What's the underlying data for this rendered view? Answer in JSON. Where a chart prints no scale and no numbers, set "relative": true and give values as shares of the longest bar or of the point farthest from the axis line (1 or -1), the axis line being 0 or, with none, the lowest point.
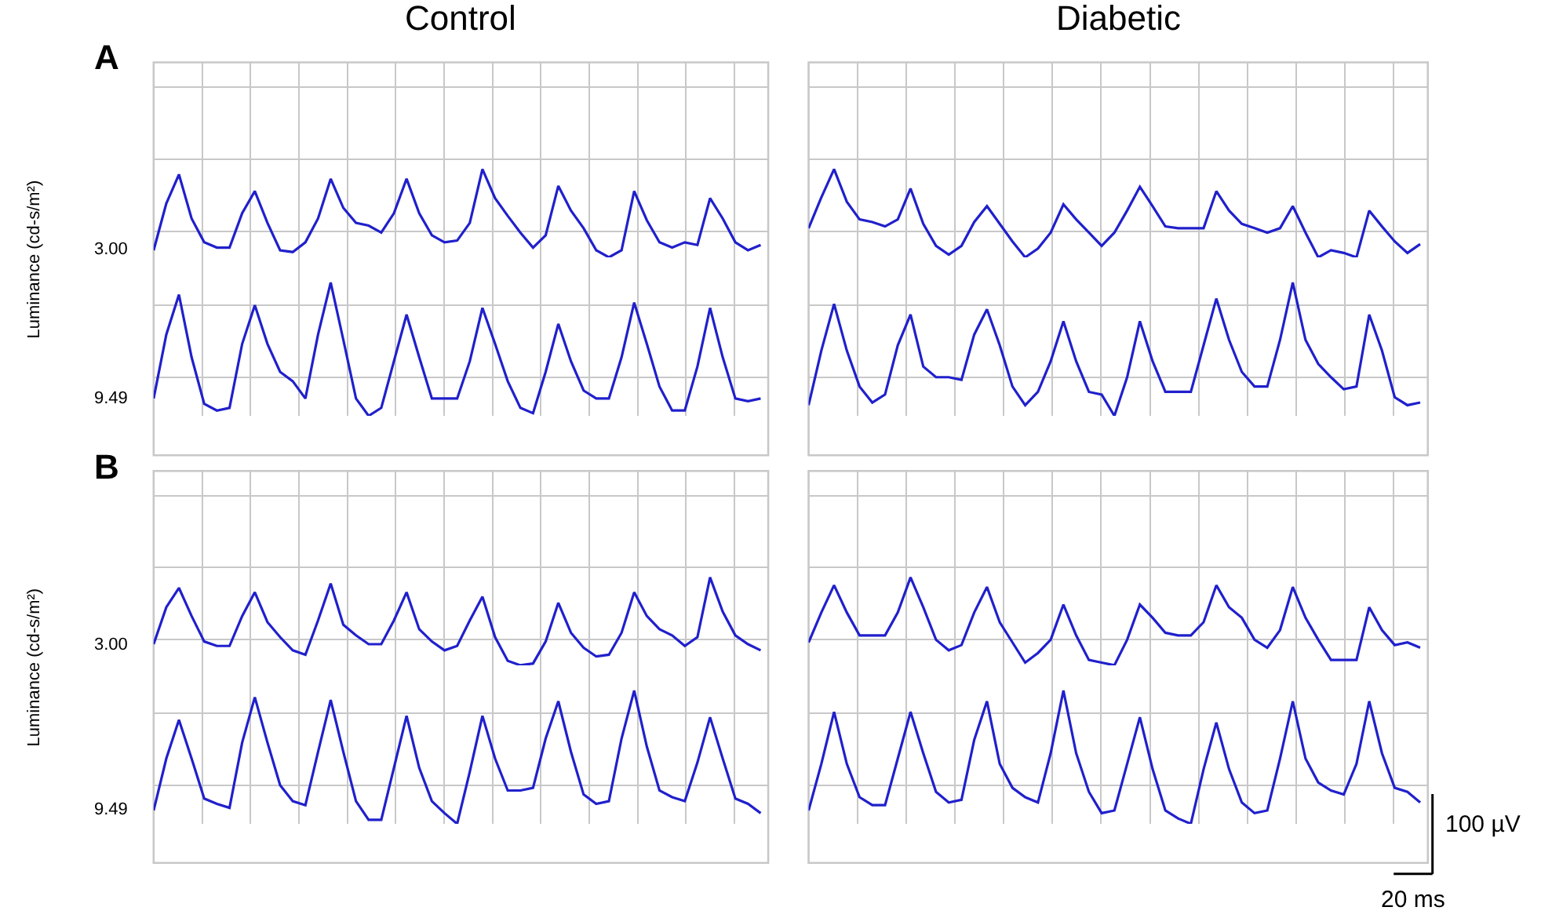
{
  "chart_data": [
    {
      "type": "line",
      "relative": true,
      "title": "Control",
      "ylabel": "Luminance (cd-s/m²)",
      "annotations": [
        "A"
      ],
      "grid": true,
      "categories": [
        null,
        null,
        null,
        null,
        null,
        null,
        null,
        null,
        null,
        null,
        null,
        null,
        null,
        null,
        null,
        null,
        null,
        null,
        null,
        null,
        null,
        null,
        null,
        null,
        null,
        null,
        null,
        null,
        null,
        null,
        null,
        null,
        null,
        null,
        null,
        null,
        null,
        null,
        null,
        null,
        null,
        null,
        null,
        null,
        null,
        null,
        null,
        null,
        null
      ],
      "series": [
        {
          "name": "3.00",
          "color": "#2020cc",
          "values": [
            0.08,
            0.61,
            0.94,
            0.44,
            0.17,
            0.11,
            0.11,
            0.5,
            0.75,
            0.39,
            0.08,
            0.06,
            0.17,
            0.44,
            0.89,
            0.56,
            0.39,
            0.36,
            0.28,
            0.5,
            0.89,
            0.5,
            0.25,
            0.17,
            0.19,
            0.39,
            1.0,
            0.67,
            0.47,
            0.28,
            0.11,
            0.25,
            0.81,
            0.53,
            0.33,
            0.08,
            0.0,
            0.08,
            0.75,
            0.42,
            0.17,
            0.11,
            0.17,
            0.14,
            0.67,
            0.44,
            0.17,
            0.08,
            0.14
          ]
        }
      ]
    },
    {
      "type": "line",
      "relative": true,
      "title": "Diabetic",
      "grid": true,
      "categories": [
        null,
        null,
        null,
        null,
        null,
        null,
        null,
        null,
        null,
        null,
        null,
        null,
        null,
        null,
        null,
        null,
        null,
        null,
        null,
        null,
        null,
        null,
        null,
        null,
        null,
        null,
        null,
        null,
        null,
        null,
        null,
        null,
        null,
        null,
        null,
        null,
        null,
        null,
        null,
        null,
        null,
        null,
        null,
        null,
        null,
        null,
        null,
        null,
        null
      ],
      "series": [
        {
          "color": "#2020cc",
          "values": [
            0.33,
            0.68,
            1.0,
            0.63,
            0.43,
            0.4,
            0.35,
            0.43,
            0.78,
            0.38,
            0.13,
            0.03,
            0.13,
            0.4,
            0.58,
            0.38,
            0.18,
            0.0,
            0.1,
            0.28,
            0.6,
            0.43,
            0.28,
            0.13,
            0.28,
            0.53,
            0.8,
            0.58,
            0.35,
            0.33,
            0.33,
            0.33,
            0.75,
            0.53,
            0.38,
            0.33,
            0.28,
            0.33,
            0.58,
            0.28,
            0.0,
            0.08,
            0.05,
            0.0,
            0.53,
            0.35,
            0.18,
            0.05,
            0.15
          ]
        }
      ]
    },
    {
      "type": "line",
      "relative": true,
      "grid": true,
      "categories": [
        null,
        null,
        null,
        null,
        null,
        null,
        null,
        null,
        null,
        null,
        null,
        null,
        null,
        null,
        null,
        null,
        null,
        null,
        null,
        null,
        null,
        null,
        null,
        null,
        null,
        null,
        null,
        null,
        null,
        null,
        null,
        null,
        null,
        null,
        null,
        null,
        null,
        null,
        null,
        null,
        null,
        null,
        null,
        null,
        null,
        null,
        null,
        null,
        null
      ],
      "series": [
        {
          "name": "9.49",
          "color": "#2020cc",
          "values": [
            0.13,
            0.61,
            0.91,
            0.44,
            0.09,
            0.04,
            0.06,
            0.54,
            0.83,
            0.54,
            0.33,
            0.26,
            0.13,
            0.61,
            1.0,
            0.57,
            0.13,
            0.0,
            0.06,
            0.41,
            0.76,
            0.44,
            0.13,
            0.13,
            0.13,
            0.41,
            0.81,
            0.54,
            0.26,
            0.06,
            0.02,
            0.33,
            0.69,
            0.41,
            0.19,
            0.13,
            0.13,
            0.44,
            0.85,
            0.54,
            0.22,
            0.04,
            0.04,
            0.37,
            0.81,
            0.44,
            0.13,
            0.11,
            0.13
          ]
        }
      ]
    },
    {
      "type": "line",
      "relative": true,
      "grid": true,
      "categories": [
        null,
        null,
        null,
        null,
        null,
        null,
        null,
        null,
        null,
        null,
        null,
        null,
        null,
        null,
        null,
        null,
        null,
        null,
        null,
        null,
        null,
        null,
        null,
        null,
        null,
        null,
        null,
        null,
        null,
        null,
        null,
        null,
        null,
        null,
        null,
        null,
        null,
        null,
        null,
        null,
        null,
        null,
        null,
        null,
        null,
        null,
        null,
        null,
        null
      ],
      "series": [
        {
          "color": "#2020cc",
          "values": [
            0.08,
            0.49,
            0.84,
            0.49,
            0.22,
            0.1,
            0.16,
            0.53,
            0.76,
            0.37,
            0.29,
            0.29,
            0.27,
            0.61,
            0.8,
            0.53,
            0.22,
            0.08,
            0.18,
            0.41,
            0.71,
            0.41,
            0.18,
            0.16,
            0.0,
            0.29,
            0.71,
            0.41,
            0.18,
            0.18,
            0.18,
            0.53,
            0.88,
            0.57,
            0.33,
            0.22,
            0.22,
            0.57,
            1.0,
            0.57,
            0.39,
            0.29,
            0.2,
            0.22,
            0.76,
            0.49,
            0.14,
            0.08,
            0.1
          ]
        }
      ]
    },
    {
      "type": "line",
      "relative": true,
      "ylabel": "Luminance (cd-s/m²)",
      "annotations": [
        "B"
      ],
      "grid": true,
      "categories": [
        null,
        null,
        null,
        null,
        null,
        null,
        null,
        null,
        null,
        null,
        null,
        null,
        null,
        null,
        null,
        null,
        null,
        null,
        null,
        null,
        null,
        null,
        null,
        null,
        null,
        null,
        null,
        null,
        null,
        null,
        null,
        null,
        null,
        null,
        null,
        null,
        null,
        null,
        null,
        null,
        null,
        null,
        null,
        null,
        null,
        null,
        null,
        null,
        null
      ],
      "series": [
        {
          "name": "3.00",
          "color": "#2020cc",
          "values": [
            0.24,
            0.66,
            0.88,
            0.56,
            0.27,
            0.22,
            0.22,
            0.56,
            0.83,
            0.49,
            0.32,
            0.17,
            0.12,
            0.51,
            0.93,
            0.46,
            0.34,
            0.24,
            0.24,
            0.51,
            0.83,
            0.41,
            0.27,
            0.17,
            0.22,
            0.51,
            0.78,
            0.32,
            0.05,
            0.0,
            0.02,
            0.27,
            0.71,
            0.37,
            0.2,
            0.1,
            0.12,
            0.37,
            0.83,
            0.56,
            0.41,
            0.34,
            0.22,
            0.32,
            1.0,
            0.61,
            0.34,
            0.24,
            0.17
          ]
        }
      ]
    },
    {
      "type": "line",
      "relative": true,
      "grid": true,
      "categories": [
        null,
        null,
        null,
        null,
        null,
        null,
        null,
        null,
        null,
        null,
        null,
        null,
        null,
        null,
        null,
        null,
        null,
        null,
        null,
        null,
        null,
        null,
        null,
        null,
        null,
        null,
        null,
        null,
        null,
        null,
        null,
        null,
        null,
        null,
        null,
        null,
        null,
        null,
        null,
        null,
        null,
        null,
        null,
        null,
        null,
        null,
        null,
        null,
        null
      ],
      "series": [
        {
          "color": "#2020cc",
          "values": [
            0.26,
            0.6,
            0.91,
            0.6,
            0.34,
            0.34,
            0.34,
            0.6,
            1.0,
            0.66,
            0.29,
            0.17,
            0.23,
            0.6,
            0.89,
            0.49,
            0.26,
            0.03,
            0.14,
            0.29,
            0.69,
            0.34,
            0.06,
            0.03,
            0.0,
            0.29,
            0.69,
            0.54,
            0.37,
            0.34,
            0.34,
            0.49,
            0.91,
            0.66,
            0.54,
            0.29,
            0.2,
            0.4,
            0.89,
            0.54,
            0.29,
            0.06,
            0.06,
            0.06,
            0.66,
            0.4,
            0.23,
            0.26,
            0.2
          ]
        }
      ]
    },
    {
      "type": "line",
      "relative": true,
      "grid": true,
      "categories": [
        null,
        null,
        null,
        null,
        null,
        null,
        null,
        null,
        null,
        null,
        null,
        null,
        null,
        null,
        null,
        null,
        null,
        null,
        null,
        null,
        null,
        null,
        null,
        null,
        null,
        null,
        null,
        null,
        null,
        null,
        null,
        null,
        null,
        null,
        null,
        null,
        null,
        null,
        null,
        null,
        null,
        null,
        null,
        null,
        null,
        null,
        null,
        null,
        null
      ],
      "series": [
        {
          "name": "9.49",
          "color": "#2020cc",
          "values": [
            0.1,
            0.49,
            0.78,
            0.49,
            0.19,
            0.15,
            0.12,
            0.61,
            0.95,
            0.61,
            0.29,
            0.17,
            0.14,
            0.54,
            0.93,
            0.54,
            0.17,
            0.03,
            0.03,
            0.42,
            0.81,
            0.42,
            0.17,
            0.08,
            0.0,
            0.39,
            0.81,
            0.49,
            0.25,
            0.25,
            0.27,
            0.64,
            0.92,
            0.54,
            0.22,
            0.15,
            0.17,
            0.64,
            1.0,
            0.58,
            0.25,
            0.2,
            0.17,
            0.46,
            0.8,
            0.49,
            0.19,
            0.15,
            0.08
          ]
        }
      ]
    },
    {
      "type": "line",
      "relative": true,
      "annotations": [
        "100 µV",
        "20 ms"
      ],
      "grid": true,
      "categories": [
        null,
        null,
        null,
        null,
        null,
        null,
        null,
        null,
        null,
        null,
        null,
        null,
        null,
        null,
        null,
        null,
        null,
        null,
        null,
        null,
        null,
        null,
        null,
        null,
        null,
        null,
        null,
        null,
        null,
        null,
        null,
        null,
        null,
        null,
        null,
        null,
        null,
        null,
        null,
        null,
        null,
        null,
        null,
        null,
        null,
        null,
        null,
        null,
        null
      ],
      "series": [
        {
          "color": "#2020cc",
          "values": [
            0.1,
            0.45,
            0.84,
            0.45,
            0.2,
            0.14,
            0.14,
            0.49,
            0.84,
            0.53,
            0.24,
            0.16,
            0.18,
            0.63,
            0.92,
            0.45,
            0.27,
            0.2,
            0.16,
            0.53,
            1.0,
            0.53,
            0.24,
            0.08,
            0.1,
            0.45,
            0.8,
            0.41,
            0.1,
            0.04,
            0.0,
            0.41,
            0.76,
            0.41,
            0.16,
            0.08,
            0.1,
            0.49,
            0.92,
            0.49,
            0.31,
            0.25,
            0.22,
            0.45,
            0.92,
            0.53,
            0.27,
            0.24,
            0.16
          ]
        }
      ]
    }
  ]
}
